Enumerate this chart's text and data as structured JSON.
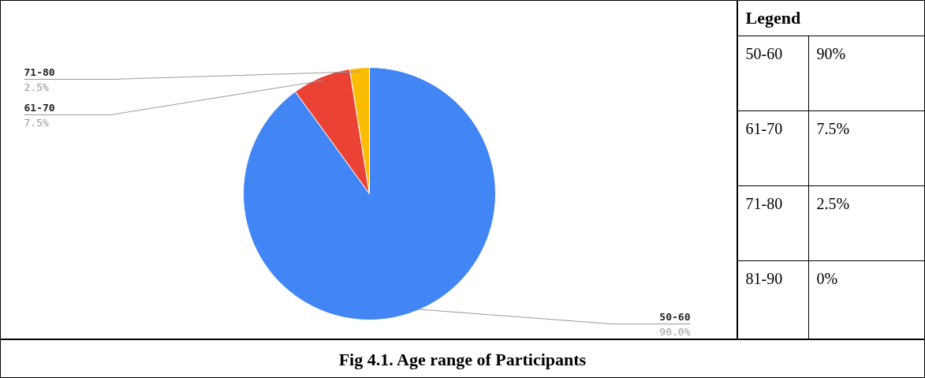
{
  "chart_data": [
    {
      "type": "pie",
      "title": "Fig 4.1. Age range of Participants",
      "categories": [
        "50-60",
        "61-70",
        "71-80"
      ],
      "values": [
        90,
        7.5,
        2.5
      ],
      "value_labels": [
        "90.0%",
        "7.5%",
        "2.5%"
      ],
      "colors": [
        "#4285f4",
        "#ea4335",
        "#fbbc04"
      ]
    },
    {
      "type": "other",
      "title": "Legend",
      "categories": [
        "50-60",
        "61-70",
        "71-80",
        "81-90"
      ],
      "values": [
        90,
        7.5,
        2.5,
        0
      ],
      "value_labels": [
        "90%",
        "7.5%",
        "2.5%",
        "0%"
      ]
    }
  ]
}
